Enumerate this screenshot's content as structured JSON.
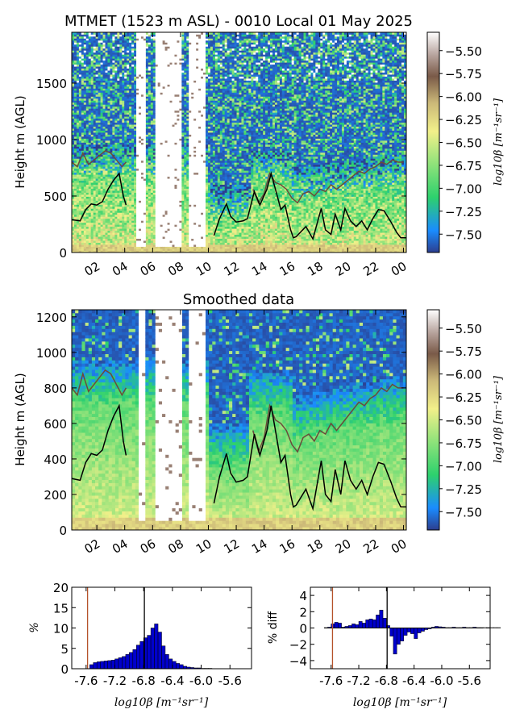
{
  "chart_data": [
    {
      "type": "heatmap",
      "title": "MTMET (1523 m ASL) - 0010 Local 01 May 2025",
      "ylabel": "Height m (AGL)",
      "xlabel": "",
      "xticks": [
        "02",
        "04",
        "06",
        "08",
        "10",
        "12",
        "14",
        "16",
        "18",
        "20",
        "22",
        "00"
      ],
      "xlim_hours": [
        0.2,
        24.2
      ],
      "ylim": [
        0,
        1950
      ],
      "yticks": [
        0,
        500,
        1000,
        1500
      ],
      "colorbar": {
        "label": "log10β [m⁻¹sr⁻¹]",
        "range": [
          -7.7,
          -5.3
        ],
        "ticks": [
          "-5.50",
          "-5.75",
          "-6.00",
          "-6.25",
          "-6.50",
          "-6.75",
          "-7.00",
          "-7.25",
          "-7.50"
        ],
        "colormap": [
          "#2c3e8f",
          "#1a8cff",
          "#2dd16d",
          "#8ee27a",
          "#f2f08a",
          "#cbb878",
          "#7a5a48",
          "#b9a6a0",
          "#ffffff"
        ]
      },
      "boundary_layer_line": {
        "color": "#000000",
        "points": [
          [
            0.2,
            290
          ],
          [
            0.8,
            280
          ],
          [
            1.2,
            380
          ],
          [
            1.6,
            430
          ],
          [
            2.0,
            420
          ],
          [
            2.4,
            450
          ],
          [
            2.8,
            560
          ],
          [
            3.2,
            640
          ],
          [
            3.6,
            700
          ],
          [
            3.9,
            500
          ],
          [
            4.1,
            420
          ],
          [
            10.4,
            150
          ],
          [
            10.8,
            300
          ],
          [
            11.3,
            430
          ],
          [
            11.6,
            320
          ],
          [
            12.0,
            270
          ],
          [
            12.5,
            280
          ],
          [
            12.8,
            300
          ],
          [
            13.3,
            540
          ],
          [
            13.7,
            420
          ],
          [
            14.2,
            560
          ],
          [
            14.5,
            700
          ],
          [
            14.9,
            520
          ],
          [
            15.2,
            380
          ],
          [
            15.5,
            420
          ],
          [
            15.9,
            200
          ],
          [
            16.1,
            130
          ],
          [
            16.3,
            140
          ],
          [
            17.0,
            230
          ],
          [
            17.5,
            120
          ],
          [
            18.1,
            390
          ],
          [
            18.4,
            200
          ],
          [
            18.8,
            160
          ],
          [
            19.1,
            340
          ],
          [
            19.5,
            200
          ],
          [
            19.8,
            390
          ],
          [
            20.2,
            280
          ],
          [
            20.6,
            230
          ],
          [
            21.0,
            280
          ],
          [
            21.4,
            200
          ],
          [
            21.8,
            300
          ],
          [
            22.2,
            380
          ],
          [
            22.6,
            370
          ],
          [
            23.1,
            270
          ],
          [
            23.5,
            180
          ],
          [
            23.8,
            130
          ],
          [
            24.2,
            130
          ]
        ]
      },
      "aerosol_top_line": {
        "color": "#6b4b3a",
        "points": [
          [
            0.2,
            800
          ],
          [
            0.6,
            760
          ],
          [
            1.0,
            880
          ],
          [
            1.4,
            780
          ],
          [
            1.8,
            820
          ],
          [
            2.2,
            860
          ],
          [
            2.6,
            900
          ],
          [
            3.0,
            880
          ],
          [
            3.4,
            820
          ],
          [
            3.8,
            760
          ],
          [
            4.1,
            800
          ],
          [
            13.2,
            560
          ],
          [
            13.6,
            440
          ],
          [
            14.0,
            520
          ],
          [
            14.4,
            700
          ],
          [
            14.8,
            620
          ],
          [
            15.2,
            600
          ],
          [
            15.6,
            560
          ],
          [
            16.0,
            480
          ],
          [
            16.4,
            440
          ],
          [
            16.8,
            520
          ],
          [
            17.2,
            540
          ],
          [
            17.6,
            500
          ],
          [
            18.0,
            560
          ],
          [
            18.4,
            540
          ],
          [
            18.8,
            600
          ],
          [
            19.2,
            560
          ],
          [
            19.6,
            600
          ],
          [
            20.0,
            640
          ],
          [
            20.4,
            680
          ],
          [
            20.8,
            720
          ],
          [
            21.2,
            700
          ],
          [
            21.6,
            740
          ],
          [
            22.0,
            760
          ],
          [
            22.4,
            800
          ],
          [
            22.8,
            780
          ],
          [
            23.2,
            820
          ],
          [
            23.6,
            800
          ],
          [
            24.0,
            800
          ]
        ]
      }
    },
    {
      "type": "heatmap",
      "title": "Smoothed data",
      "ylabel": "Height m (AGL)",
      "xlabel": "",
      "xticks": [
        "02",
        "04",
        "06",
        "08",
        "10",
        "12",
        "14",
        "16",
        "18",
        "20",
        "22",
        "00"
      ],
      "xlim_hours": [
        0.2,
        24.2
      ],
      "ylim": [
        0,
        1240
      ],
      "yticks": [
        0,
        200,
        400,
        600,
        800,
        1000,
        1200
      ],
      "colorbar": {
        "label": "log10β [m⁻¹sr⁻¹]",
        "range": [
          -7.7,
          -5.3
        ],
        "ticks": [
          "-5.50",
          "-5.75",
          "-6.00",
          "-6.25",
          "-6.50",
          "-6.75",
          "-7.00",
          "-7.25",
          "-7.50"
        ]
      }
    },
    {
      "type": "bar",
      "ylabel": "%",
      "xlabel": "log10β [m⁻¹sr⁻¹]",
      "xlim": [
        -7.8,
        -5.3
      ],
      "ylim": [
        0,
        20
      ],
      "xticks": [
        "-7.6",
        "-7.2",
        "-6.8",
        "-6.4",
        "-6.0",
        "-5.6"
      ],
      "yticks": [
        0,
        5,
        10,
        15,
        20
      ],
      "bar_color": "#0000cc",
      "vlines": [
        {
          "x": -7.58,
          "color": "#b5532b"
        },
        {
          "x": -6.79,
          "color": "#000000"
        }
      ],
      "bins_start": -7.55,
      "bin_width": 0.05,
      "values": [
        1.0,
        1.5,
        1.7,
        1.8,
        1.9,
        2.0,
        2.1,
        2.4,
        2.7,
        3.0,
        3.5,
        4.0,
        4.7,
        5.8,
        6.7,
        7.6,
        8.2,
        10.0,
        11.0,
        9.0,
        5.6,
        3.5,
        2.4,
        1.8,
        1.3,
        1.0,
        0.6,
        0.4,
        0.3,
        0.2,
        0.2,
        0.1,
        0.1,
        0.1,
        0.05,
        0.05
      ]
    },
    {
      "type": "bar",
      "ylabel": "% diff",
      "xlabel": "log10β [m⁻¹sr⁻¹]",
      "xlim": [
        -7.9,
        -5.3
      ],
      "ylim": [
        -5,
        5
      ],
      "xticks": [
        "-7.6",
        "-7.2",
        "-6.8",
        "-6.4",
        "-6.0",
        "-5.6"
      ],
      "yticks": [
        4,
        2,
        0,
        -2,
        -4
      ],
      "bar_color": "#0000cc",
      "vlines": [
        {
          "x": -7.58,
          "color": "#b5532b"
        },
        {
          "x": -6.79,
          "color": "#000000"
        }
      ],
      "bins_start": -7.7,
      "bin_width": 0.05,
      "values": [
        0.05,
        0.1,
        0.5,
        0.7,
        0.6,
        0.1,
        0.2,
        0.3,
        0.5,
        0.4,
        0.8,
        0.6,
        1.0,
        1.1,
        1.0,
        1.6,
        2.2,
        1.2,
        0.3,
        -1.0,
        -3.2,
        -2.0,
        -1.6,
        -0.9,
        -0.5,
        -0.7,
        -1.3,
        -0.6,
        -0.4,
        -0.2,
        -0.1,
        0.1,
        0.2,
        0.15,
        0.1,
        0.05,
        0.05,
        0.1,
        0.05,
        0.05,
        0.1,
        0.05,
        0.05,
        0.1,
        0.05,
        0.05,
        0.05,
        0.05,
        0.05,
        0.05,
        0.05
      ]
    }
  ]
}
